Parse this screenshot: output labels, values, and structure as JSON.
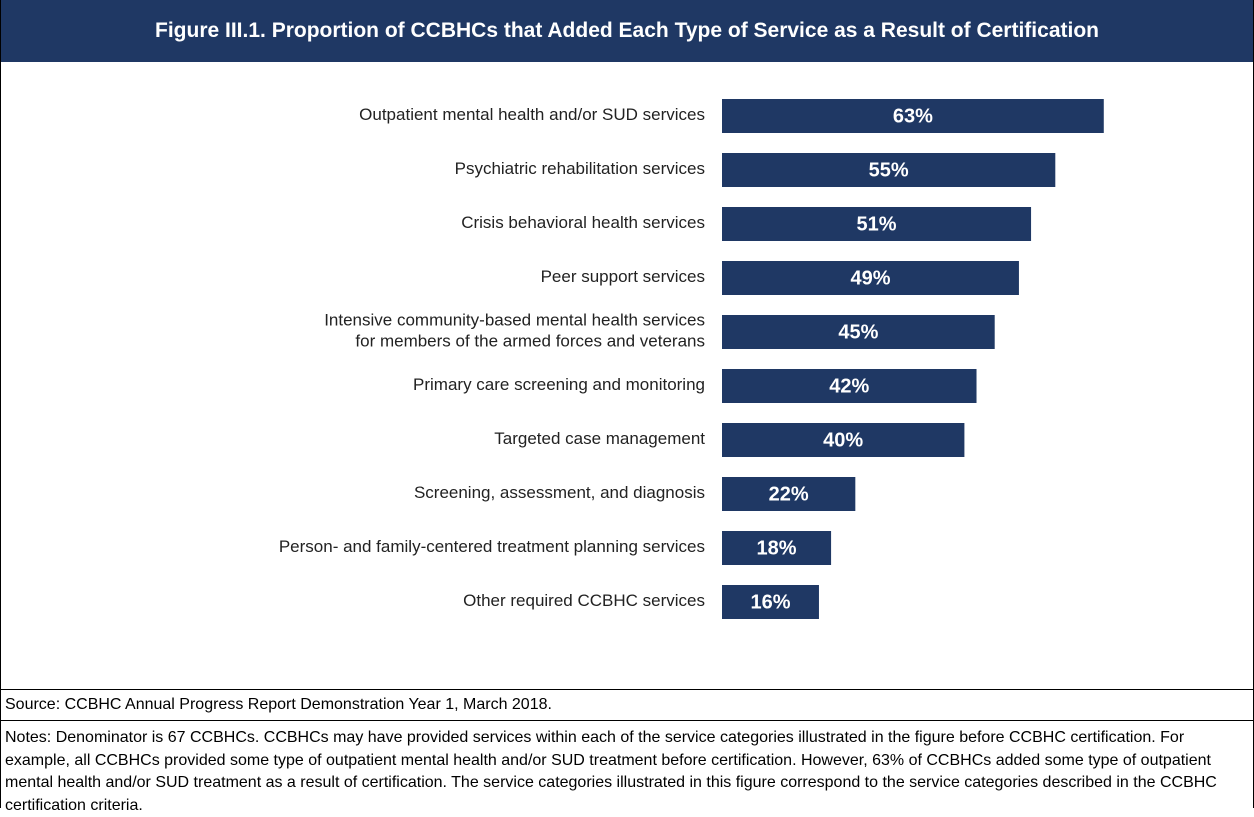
{
  "chart_data": {
    "type": "bar",
    "orientation": "horizontal",
    "title": "Figure III.1. Proportion of CCBHCs that Added Each Type of Service as a Result of Certification",
    "categories": [
      "Outpatient mental health and/or SUD services",
      "Psychiatric rehabilitation services",
      "Crisis behavioral health services",
      "Peer support services",
      "Intensive community-based mental health services\nfor members of the armed forces and veterans",
      "Primary care screening and monitoring",
      "Targeted case management",
      "Screening, assessment, and diagnosis",
      "Person- and family-centered treatment planning services",
      "Other required CCBHC services"
    ],
    "values": [
      63,
      55,
      51,
      49,
      45,
      42,
      40,
      22,
      18,
      16
    ],
    "value_labels": [
      "63%",
      "55%",
      "51%",
      "49%",
      "45%",
      "42%",
      "40%",
      "22%",
      "18%",
      "16%"
    ],
    "color": "#1f3864",
    "xlim": [
      0,
      100
    ]
  },
  "source": "Source:  CCBHC Annual Progress Report Demonstration Year 1, March 2018.",
  "notes": "Notes:  Denominator is 67 CCBHCs. CCBHCs may have provided services within each of the service categories illustrated in the figure before CCBHC certification. For example, all CCBHCs provided some type of outpatient mental health and/or SUD treatment before certification. However, 63% of CCBHCs added some type of outpatient mental health and/or SUD treatment as a result of certification. The service categories illustrated in this figure correspond to the service categories described in the CCBHC certification criteria."
}
